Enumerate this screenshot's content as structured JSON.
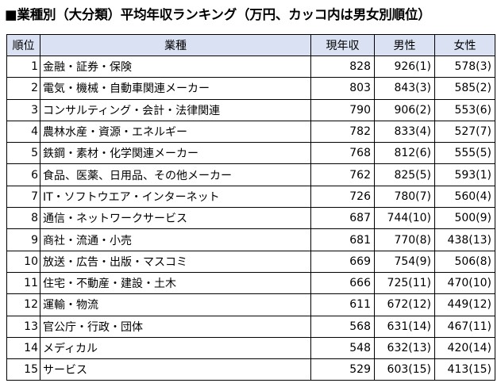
{
  "title": "■業種別（大分類）平均年収ランキング（万円、カッコ内は男女別順位）",
  "headers": {
    "rank": "順位",
    "category": "業種",
    "current": "現年収",
    "male": "男性",
    "female": "女性"
  },
  "header_color": "#d9e1f2",
  "rows": [
    {
      "rank": "1",
      "category": "金融・証券・保険",
      "current": "828",
      "male": "926(1)",
      "female": "578(3)"
    },
    {
      "rank": "2",
      "category": "電気・機械・自動車関連メーカー",
      "current": "803",
      "male": "843(3)",
      "female": "585(2)"
    },
    {
      "rank": "3",
      "category": "コンサルティング・会計・法律関連",
      "current": "790",
      "male": "906(2)",
      "female": "553(6)"
    },
    {
      "rank": "4",
      "category": "農林水産・資源・エネルギー",
      "current": "782",
      "male": "833(4)",
      "female": "527(7)"
    },
    {
      "rank": "5",
      "category": "鉄鋼・素材・化学関連メーカー",
      "current": "768",
      "male": "812(6)",
      "female": "555(5)"
    },
    {
      "rank": "6",
      "category": "食品、医薬、日用品、その他メーカー",
      "current": "762",
      "male": "825(5)",
      "female": "593(1)"
    },
    {
      "rank": "7",
      "category": "IT・ソフトウエア・インターネット",
      "current": "726",
      "male": "780(7)",
      "female": "560(4)"
    },
    {
      "rank": "8",
      "category": "通信・ネットワークサービス",
      "current": "687",
      "male": "744(10)",
      "female": "500(9)"
    },
    {
      "rank": "9",
      "category": "商社・流通・小売",
      "current": "681",
      "male": "770(8)",
      "female": "438(13)"
    },
    {
      "rank": "10",
      "category": "放送・広告・出版・マスコミ",
      "current": "669",
      "male": "754(9)",
      "female": "506(8)"
    },
    {
      "rank": "11",
      "category": "住宅・不動産・建設・土木",
      "current": "666",
      "male": "725(11)",
      "female": "470(10)"
    },
    {
      "rank": "12",
      "category": "運輸・物流",
      "current": "611",
      "male": "672(12)",
      "female": "449(12)"
    },
    {
      "rank": "13",
      "category": "官公庁・行政・団体",
      "current": "568",
      "male": "631(14)",
      "female": "467(11)"
    },
    {
      "rank": "14",
      "category": "メディカル",
      "current": "548",
      "male": "632(13)",
      "female": "420(14)"
    },
    {
      "rank": "15",
      "category": "サービス",
      "current": "529",
      "male": "603(15)",
      "female": "413(15)"
    }
  ]
}
